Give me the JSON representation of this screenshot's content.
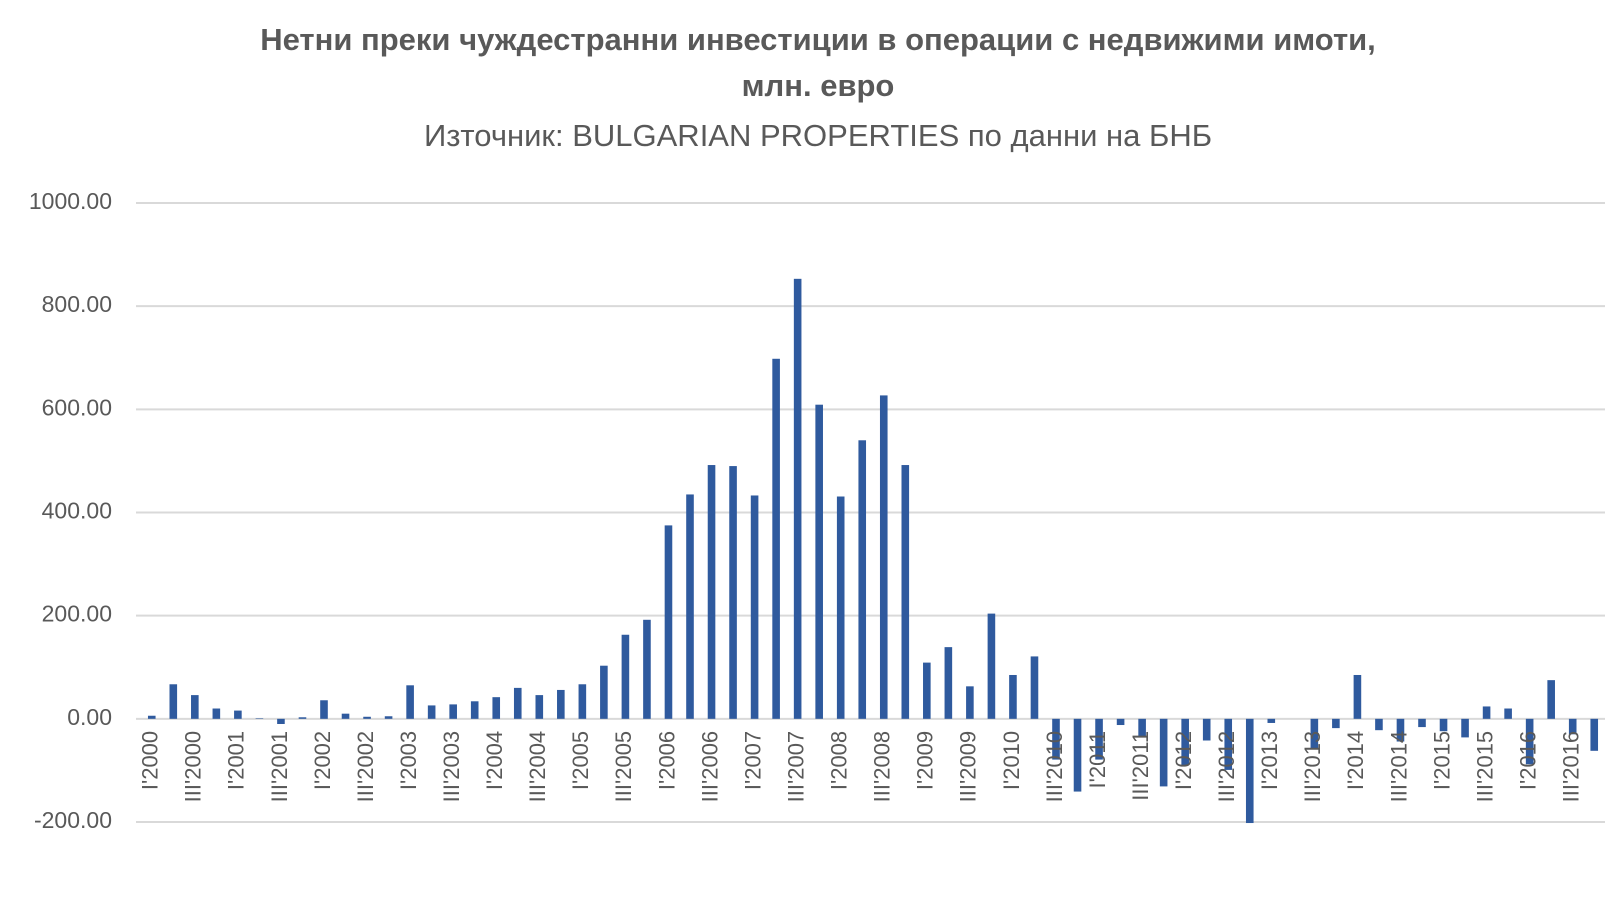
{
  "chart_data": {
    "type": "bar",
    "title_lines": [
      "Нетни преки чуждестранни инвестиции в операции с недвижими имоти,",
      "млн. евро"
    ],
    "subtitle": "Източник: BULGARIAN PROPERTIES по данни на БНБ",
    "categories": [
      "I'2000",
      null,
      "III'2000",
      null,
      "I'2001",
      null,
      "III'2001",
      null,
      "I'2002",
      null,
      "III'2002",
      null,
      "I'2003",
      null,
      "III'2003",
      null,
      "I'2004",
      null,
      "III'2004",
      null,
      "I'2005",
      null,
      "III'2005",
      null,
      "I'2006",
      null,
      "III'2006",
      null,
      "I'2007",
      null,
      "III'2007",
      null,
      "I'2008",
      null,
      "III'2008",
      null,
      "I'2009",
      null,
      "III'2009",
      null,
      "I'2010",
      null,
      "III'2010",
      null,
      "I'2011",
      null,
      "III'2011",
      null,
      "I'2012",
      null,
      "III'2012",
      null,
      "I'2013",
      null,
      "III'2013",
      null,
      "I'2014",
      null,
      "III'2014",
      null,
      "I'2015",
      null,
      "III'2015",
      null,
      "I'2016",
      null,
      "III'2016",
      null
    ],
    "values": [
      6,
      67,
      46,
      20,
      16,
      1,
      -10,
      3,
      36,
      10,
      4,
      5,
      65,
      26,
      28,
      34,
      42,
      60,
      46,
      56,
      67,
      103,
      163,
      192,
      375,
      435,
      492,
      490,
      433,
      698,
      853,
      609,
      431,
      540,
      627,
      492,
      109,
      139,
      63,
      204,
      85,
      121,
      -79,
      -141,
      -79,
      -12,
      -34,
      -131,
      -90,
      -42,
      -99,
      -202,
      -8,
      0,
      -58,
      -18,
      85,
      -22,
      -44,
      -16,
      -24,
      -36,
      24,
      20,
      -88,
      75,
      -30,
      -62
    ],
    "color": "#2f5a9e",
    "ylim": [
      -200,
      1000
    ],
    "yticks": [
      {
        "value": -200,
        "label": "-200.00"
      },
      {
        "value": 0,
        "label": "0.00"
      },
      {
        "value": 200,
        "label": "200.00"
      },
      {
        "value": 400,
        "label": "400.00"
      },
      {
        "value": 600,
        "label": "600.00"
      },
      {
        "value": 800,
        "label": "800.00"
      },
      {
        "value": 1000,
        "label": "1000.00"
      }
    ],
    "grid": true
  }
}
